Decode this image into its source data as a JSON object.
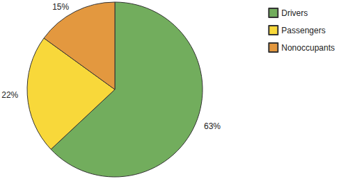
{
  "chart_data": {
    "type": "pie",
    "categories": [
      "Drivers",
      "Passengers",
      "Nonoccupants"
    ],
    "values": [
      63,
      22,
      15
    ],
    "value_labels": [
      "63%",
      "22%",
      "15%"
    ],
    "colors": [
      "#72ad5d",
      "#f8d83a",
      "#e3983f"
    ],
    "data_labels": true,
    "legend": "top-right"
  }
}
